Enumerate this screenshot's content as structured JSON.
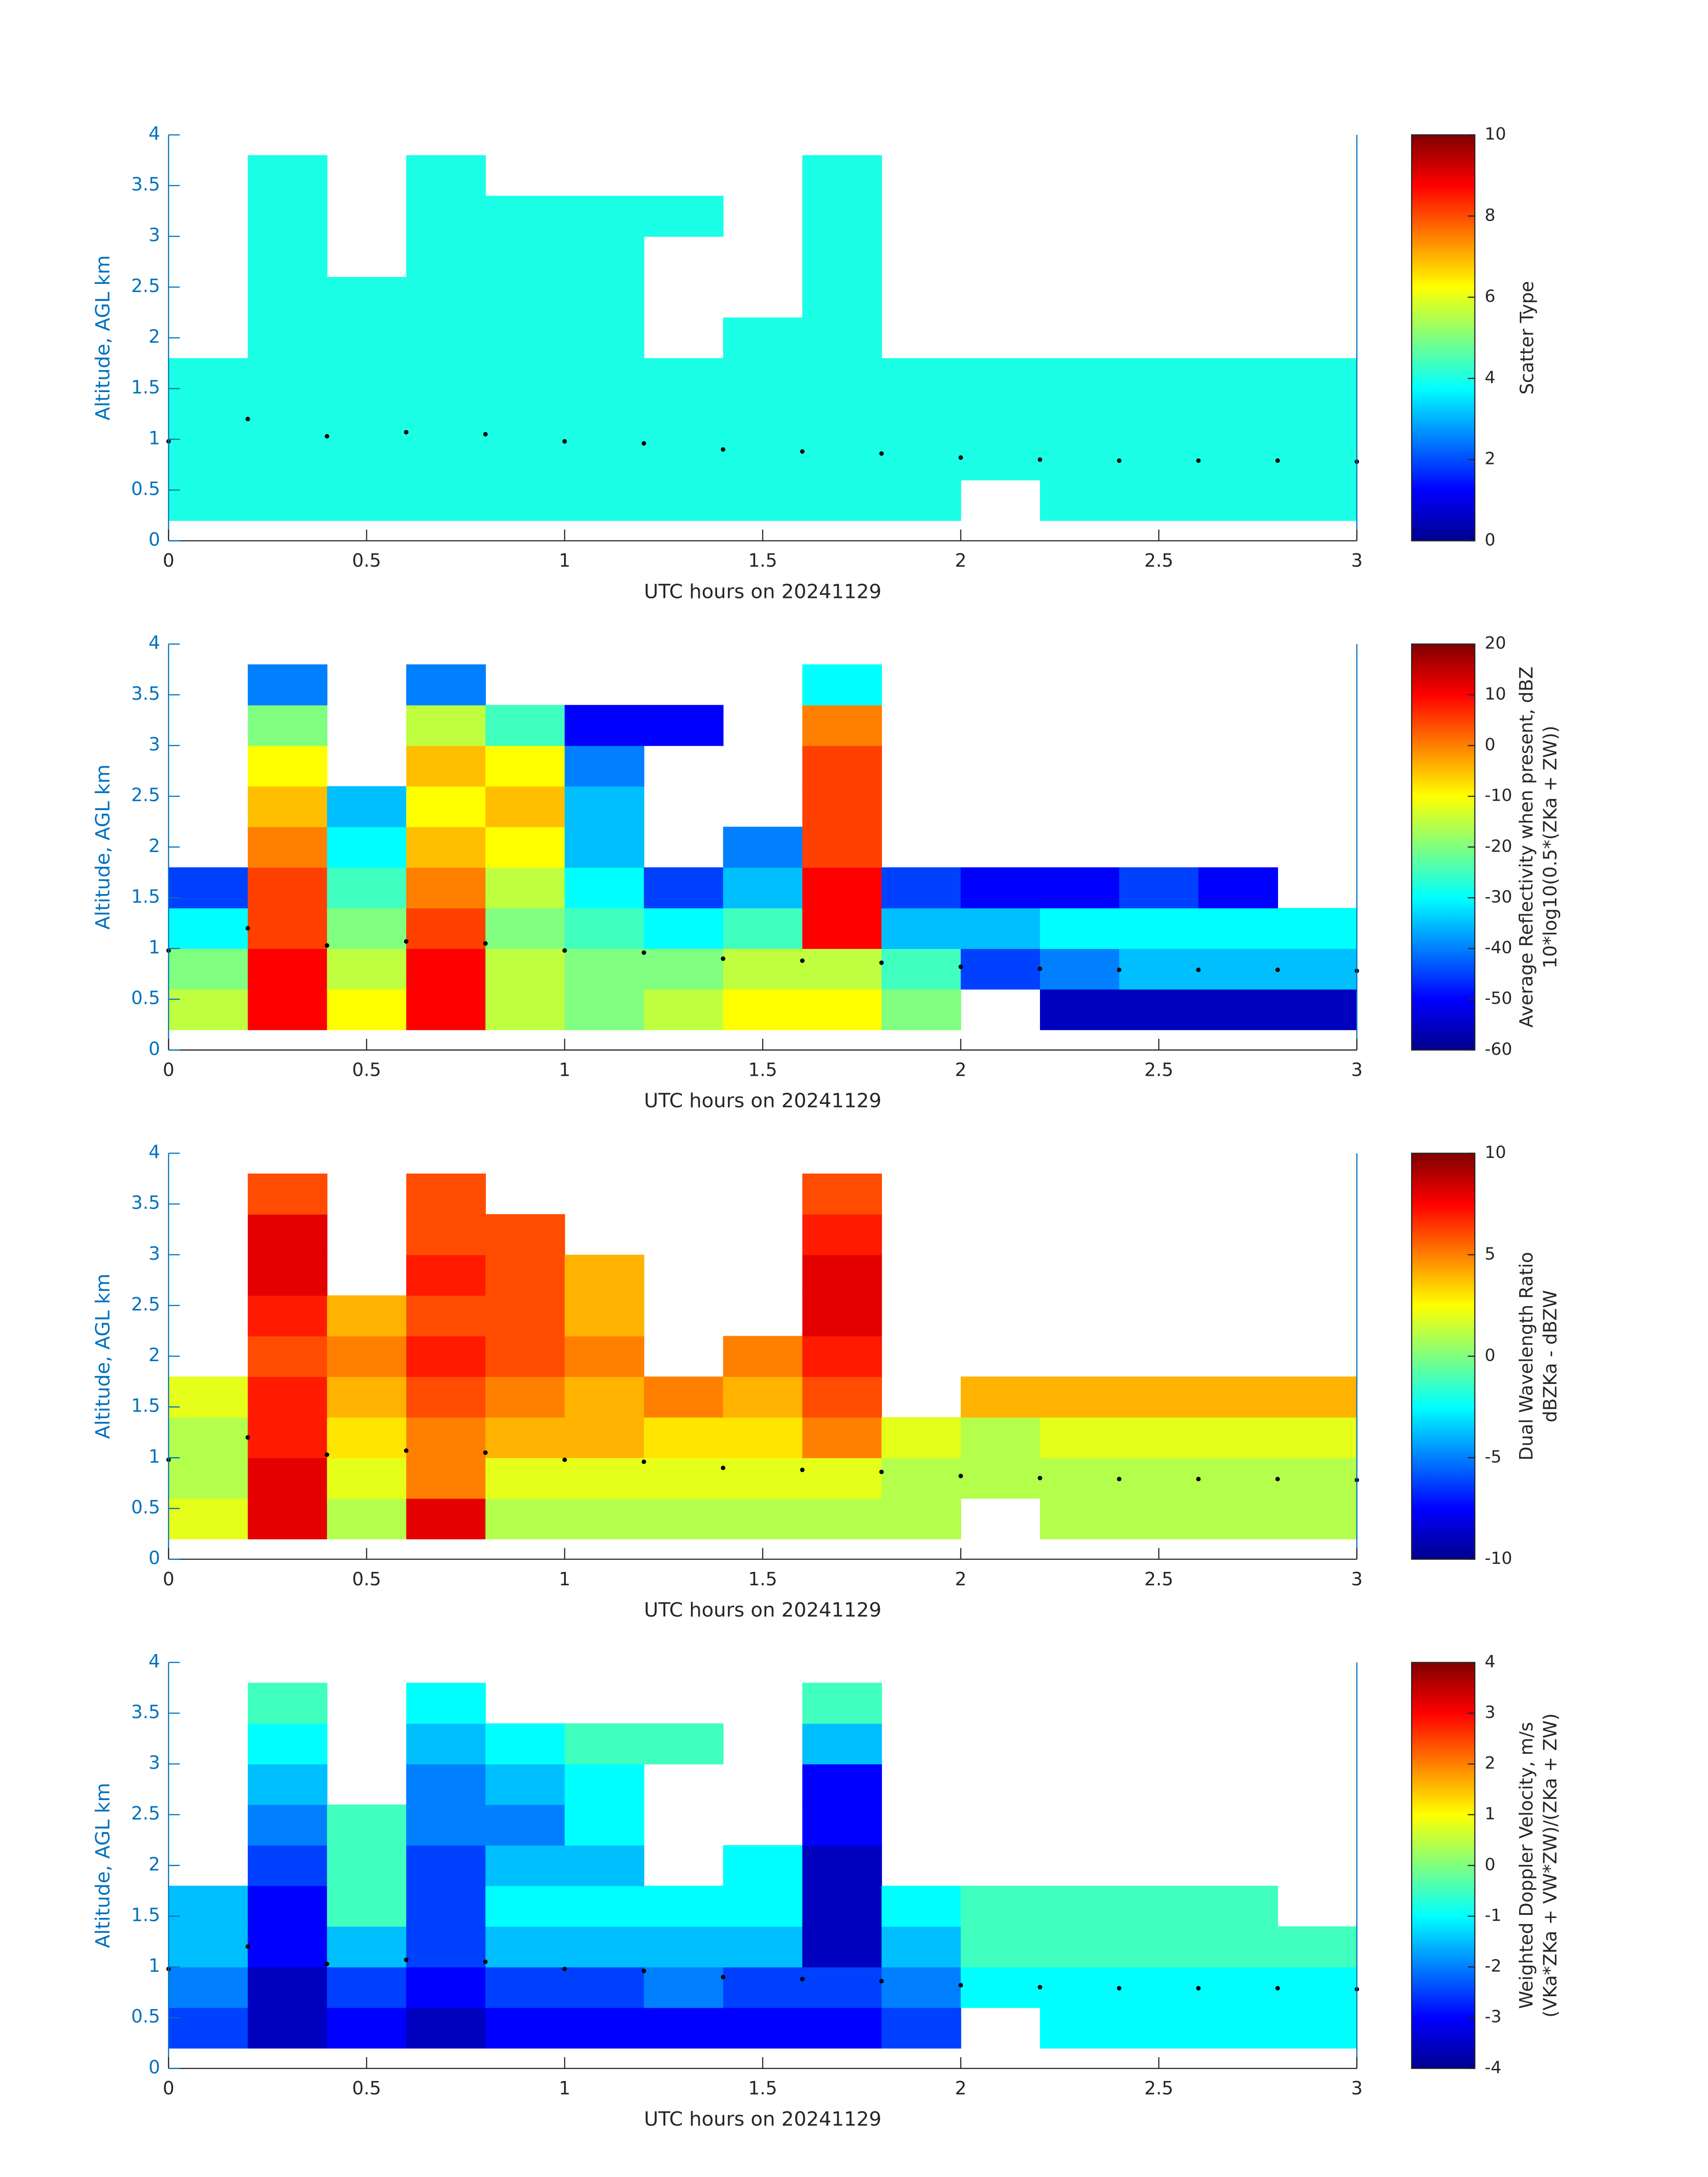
{
  "chart_data": [
    {
      "type": "heatmap",
      "xlabel": "UTC hours on 20241129",
      "ylabel": "Altitude, AGL km",
      "xlim": [
        0,
        3
      ],
      "xticks": [
        0,
        0.5,
        1,
        1.5,
        2,
        2.5,
        3
      ],
      "ylim": [
        0,
        4
      ],
      "yticks": [
        0,
        0.5,
        1,
        1.5,
        2,
        2.5,
        3,
        3.5,
        4
      ],
      "xbins": [
        0,
        0.2,
        0.4,
        0.6,
        0.8,
        1,
        1.2,
        1.4,
        1.6,
        1.8,
        2,
        2.2,
        2.4,
        2.6,
        2.8,
        3
      ],
      "ybins": [
        0.2,
        0.6,
        1,
        1.4,
        1.8,
        2.2,
        2.6,
        3,
        3.4,
        3.8
      ],
      "z": [
        [
          4,
          4,
          4,
          4,
          4,
          4,
          4,
          4,
          4,
          4,
          null,
          4,
          4,
          4,
          4
        ],
        [
          4,
          4,
          4,
          4,
          4,
          4,
          4,
          4,
          4,
          4,
          4,
          4,
          4,
          4,
          4
        ],
        [
          4,
          4,
          4,
          4,
          4,
          4,
          4,
          4,
          4,
          4,
          4,
          4,
          4,
          4,
          4
        ],
        [
          4,
          4,
          4,
          4,
          4,
          4,
          4,
          4,
          4,
          4,
          4,
          4,
          4,
          4,
          4
        ],
        [
          null,
          4,
          4,
          4,
          4,
          4,
          null,
          4,
          4,
          null,
          null,
          null,
          null,
          null,
          null
        ],
        [
          null,
          4,
          4,
          4,
          4,
          4,
          null,
          null,
          4,
          null,
          null,
          null,
          null,
          null,
          null
        ],
        [
          null,
          4,
          null,
          4,
          4,
          4,
          null,
          null,
          4,
          null,
          null,
          null,
          null,
          null,
          null
        ],
        [
          null,
          4,
          null,
          4,
          4,
          4,
          4,
          null,
          4,
          null,
          null,
          null,
          null,
          null,
          null
        ],
        [
          null,
          4,
          null,
          4,
          null,
          null,
          null,
          null,
          4,
          null,
          null,
          null,
          null,
          null,
          null
        ]
      ],
      "line_x": [
        0,
        0.2,
        0.4,
        0.6,
        0.8,
        1,
        1.2,
        1.4,
        1.6,
        1.8,
        2,
        2.2,
        2.4,
        2.6,
        2.8,
        3
      ],
      "line_y": [
        0.98,
        1.2,
        1.03,
        1.07,
        1.05,
        0.98,
        0.96,
        0.9,
        0.88,
        0.86,
        0.82,
        0.8,
        0.79,
        0.79,
        0.79,
        0.78
      ],
      "line_color": "#000000",
      "clim": [
        0,
        10
      ],
      "cticks": [
        0,
        2,
        4,
        6,
        8,
        10
      ],
      "colorbar_label": [
        "Scatter Type"
      ]
    },
    {
      "type": "heatmap",
      "xlabel": "UTC hours on 20241129",
      "ylabel": "Altitude, AGL km",
      "xlim": [
        0,
        3
      ],
      "xticks": [
        0,
        0.5,
        1,
        1.5,
        2,
        2.5,
        3
      ],
      "ylim": [
        0,
        4
      ],
      "yticks": [
        0,
        0.5,
        1,
        1.5,
        2,
        2.5,
        3,
        3.5,
        4
      ],
      "xbins": [
        0,
        0.2,
        0.4,
        0.6,
        0.8,
        1,
        1.2,
        1.4,
        1.6,
        1.8,
        2,
        2.2,
        2.4,
        2.6,
        2.8,
        3
      ],
      "ybins": [
        0.2,
        0.6,
        1,
        1.4,
        1.8,
        2.2,
        2.6,
        3,
        3.4,
        3.8
      ],
      "z": [
        [
          -15,
          10,
          -10,
          10,
          -15,
          -20,
          -15,
          -10,
          -10,
          -20,
          null,
          -55,
          -55,
          -55,
          -55
        ],
        [
          -20,
          10,
          -15,
          10,
          -15,
          -20,
          -20,
          -15,
          -15,
          -25,
          -45,
          -40,
          -35,
          -35,
          -35
        ],
        [
          -30,
          5,
          -20,
          5,
          -20,
          -25,
          -30,
          -25,
          10,
          -35,
          -35,
          -30,
          -30,
          -30,
          -30
        ],
        [
          -45,
          5,
          -25,
          0,
          -15,
          -30,
          -45,
          -35,
          10,
          -45,
          -50,
          -50,
          -45,
          -50,
          null
        ],
        [
          null,
          0,
          -30,
          -5,
          -10,
          -35,
          null,
          -40,
          5,
          null,
          null,
          null,
          null,
          null,
          null
        ],
        [
          null,
          -5,
          -35,
          -10,
          -5,
          -35,
          null,
          null,
          5,
          null,
          null,
          null,
          null,
          null,
          null
        ],
        [
          null,
          -10,
          null,
          -5,
          -10,
          -40,
          null,
          null,
          5,
          null,
          null,
          null,
          null,
          null,
          null
        ],
        [
          null,
          -20,
          null,
          -15,
          -25,
          -50,
          -50,
          null,
          0,
          null,
          null,
          null,
          null,
          null,
          null
        ],
        [
          null,
          -40,
          null,
          -40,
          null,
          null,
          null,
          null,
          -30,
          null,
          null,
          null,
          null,
          null,
          null
        ]
      ],
      "line_x": [
        0,
        0.2,
        0.4,
        0.6,
        0.8,
        1,
        1.2,
        1.4,
        1.6,
        1.8,
        2,
        2.2,
        2.4,
        2.6,
        2.8,
        3
      ],
      "line_y": [
        0.98,
        1.2,
        1.03,
        1.07,
        1.05,
        0.98,
        0.96,
        0.9,
        0.88,
        0.86,
        0.82,
        0.8,
        0.79,
        0.79,
        0.79,
        0.78
      ],
      "line_color": "#000000",
      "clim": [
        -60,
        20
      ],
      "cticks": [
        -60,
        -50,
        -40,
        -30,
        -20,
        -10,
        0,
        10,
        20
      ],
      "colorbar_label": [
        "Average Reflectivity when present, dBZ",
        "10*log10(0.5*(ZKa + ZW))"
      ]
    },
    {
      "type": "heatmap",
      "xlabel": "UTC hours on 20241129",
      "ylabel": "Altitude, AGL km",
      "xlim": [
        0,
        3
      ],
      "xticks": [
        0,
        0.5,
        1,
        1.5,
        2,
        2.5,
        3
      ],
      "ylim": [
        0,
        4
      ],
      "yticks": [
        0,
        0.5,
        1,
        1.5,
        2,
        2.5,
        3,
        3.5,
        4
      ],
      "xbins": [
        0,
        0.2,
        0.4,
        0.6,
        0.8,
        1,
        1.2,
        1.4,
        1.6,
        1.8,
        2,
        2.2,
        2.4,
        2.6,
        2.8,
        3
      ],
      "ybins": [
        0.2,
        0.6,
        1,
        1.4,
        1.8,
        2.2,
        2.6,
        3,
        3.4,
        3.8
      ],
      "z": [
        [
          2,
          8,
          1,
          8,
          1,
          1,
          1,
          1,
          1,
          1,
          null,
          1,
          1,
          1,
          1
        ],
        [
          1,
          8,
          2,
          5,
          2,
          2,
          2,
          2,
          2,
          1,
          1,
          1,
          1,
          1,
          1
        ],
        [
          1,
          7,
          3,
          5,
          4,
          4,
          3,
          3,
          5,
          2,
          1,
          2,
          2,
          2,
          2
        ],
        [
          2,
          7,
          4,
          6,
          5,
          4,
          5,
          4,
          6,
          null,
          4,
          4,
          4,
          4,
          4
        ],
        [
          null,
          6,
          5,
          7,
          6,
          5,
          null,
          5,
          7,
          null,
          null,
          null,
          null,
          null,
          null
        ],
        [
          null,
          7,
          4,
          6,
          6,
          4,
          null,
          null,
          8,
          null,
          null,
          null,
          null,
          null,
          null
        ],
        [
          null,
          8,
          null,
          7,
          6,
          4,
          null,
          null,
          8,
          null,
          null,
          null,
          null,
          null,
          null
        ],
        [
          null,
          8,
          null,
          6,
          6,
          null,
          null,
          null,
          7,
          null,
          null,
          null,
          null,
          null,
          null
        ],
        [
          null,
          6,
          null,
          6,
          null,
          null,
          null,
          null,
          6,
          null,
          null,
          null,
          null,
          null,
          null
        ]
      ],
      "line_x": [
        0,
        0.2,
        0.4,
        0.6,
        0.8,
        1,
        1.2,
        1.4,
        1.6,
        1.8,
        2,
        2.2,
        2.4,
        2.6,
        2.8,
        3
      ],
      "line_y": [
        0.98,
        1.2,
        1.03,
        1.07,
        1.05,
        0.98,
        0.96,
        0.9,
        0.88,
        0.86,
        0.82,
        0.8,
        0.79,
        0.79,
        0.79,
        0.78
      ],
      "line_color": "#000000",
      "clim": [
        -10,
        10
      ],
      "cticks": [
        -10,
        -5,
        0,
        5,
        10
      ],
      "colorbar_label": [
        "Dual Wavelength Ratio",
        "dBZKa - dBZW"
      ]
    },
    {
      "type": "heatmap",
      "xlabel": "UTC hours on 20241129",
      "ylabel": "Altitude, AGL km",
      "xlim": [
        0,
        3
      ],
      "xticks": [
        0,
        0.5,
        1,
        1.5,
        2,
        2.5,
        3
      ],
      "ylim": [
        0,
        4
      ],
      "yticks": [
        0,
        0.5,
        1,
        1.5,
        2,
        2.5,
        3,
        3.5,
        4
      ],
      "xbins": [
        0,
        0.2,
        0.4,
        0.6,
        0.8,
        1,
        1.2,
        1.4,
        1.6,
        1.8,
        2,
        2.2,
        2.4,
        2.6,
        2.8,
        3
      ],
      "ybins": [
        0.2,
        0.6,
        1,
        1.4,
        1.8,
        2.2,
        2.6,
        3,
        3.4,
        3.8
      ],
      "z": [
        [
          -2.5,
          -3.5,
          -3,
          -3.5,
          -3,
          -3,
          -3,
          -3,
          -3,
          -2.5,
          null,
          -1,
          -1,
          -1,
          -1
        ],
        [
          -2,
          -3.5,
          -2.5,
          -3,
          -2.5,
          -2.5,
          -2,
          -2.5,
          -2.5,
          -2,
          -1,
          -1,
          -1,
          -1,
          -1
        ],
        [
          -1.5,
          -3,
          -1.5,
          -2.5,
          -1.5,
          -1.5,
          -1.5,
          -1.5,
          -3.5,
          -1.5,
          -0.5,
          -0.5,
          -0.5,
          -0.5,
          -0.5
        ],
        [
          -1.5,
          -3,
          -0.5,
          -2.5,
          -1,
          -1,
          -1,
          -1,
          -3.5,
          -1,
          -0.5,
          -0.5,
          -0.5,
          -0.5,
          null
        ],
        [
          null,
          -2.5,
          -0.5,
          -2.5,
          -1.5,
          -1.5,
          null,
          -1,
          -3.5,
          null,
          null,
          null,
          null,
          null,
          null
        ],
        [
          null,
          -2,
          -0.5,
          -2,
          -2,
          -1,
          null,
          null,
          -3,
          null,
          null,
          null,
          null,
          null,
          null
        ],
        [
          null,
          -1.5,
          null,
          -2,
          -1.5,
          -1,
          null,
          null,
          -3,
          null,
          null,
          null,
          null,
          null,
          null
        ],
        [
          null,
          -1,
          null,
          -1.5,
          -1,
          -0.5,
          -0.5,
          null,
          -1.5,
          null,
          null,
          null,
          null,
          null,
          null
        ],
        [
          null,
          -0.5,
          null,
          -1,
          null,
          null,
          null,
          null,
          -0.5,
          null,
          null,
          null,
          null,
          null,
          null
        ]
      ],
      "line_x": [
        0,
        0.2,
        0.4,
        0.6,
        0.8,
        1,
        1.2,
        1.4,
        1.6,
        1.8,
        2,
        2.2,
        2.4,
        2.6,
        2.8,
        3
      ],
      "line_y": [
        0.98,
        1.2,
        1.03,
        1.07,
        1.05,
        0.98,
        0.96,
        0.9,
        0.88,
        0.86,
        0.82,
        0.8,
        0.79,
        0.79,
        0.79,
        0.78
      ],
      "line_color": "#000000",
      "clim": [
        -4,
        4
      ],
      "cticks": [
        -4,
        -3,
        -2,
        -1,
        0,
        1,
        2,
        3,
        4
      ],
      "colorbar_label": [
        "Weighted Doppler Velocity, m/s",
        "(VKa*ZKa + VW*ZW)/(ZKa + ZW)"
      ]
    }
  ]
}
